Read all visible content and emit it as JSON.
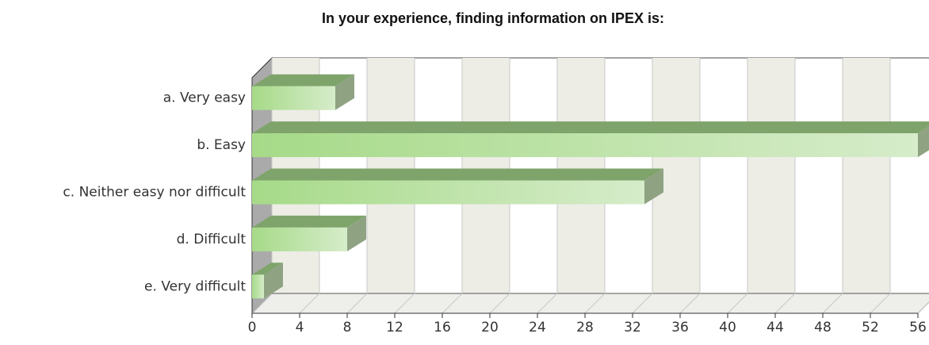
{
  "chart_data": {
    "type": "bar3d_horizontal",
    "title": "In your experience, finding information on IPEX is:",
    "categories": [
      "a. Very easy",
      "b. Easy",
      "c. Neither easy nor difficult",
      "d. Difficult",
      "e. Very difficult"
    ],
    "values": [
      7,
      56,
      33,
      8,
      1
    ],
    "color": "#a6da88",
    "xlim": [
      0,
      56
    ],
    "xticks": [
      0,
      4,
      8,
      12,
      16,
      20,
      24,
      28,
      32,
      36,
      40,
      44,
      48,
      52,
      56
    ],
    "grid": true
  }
}
